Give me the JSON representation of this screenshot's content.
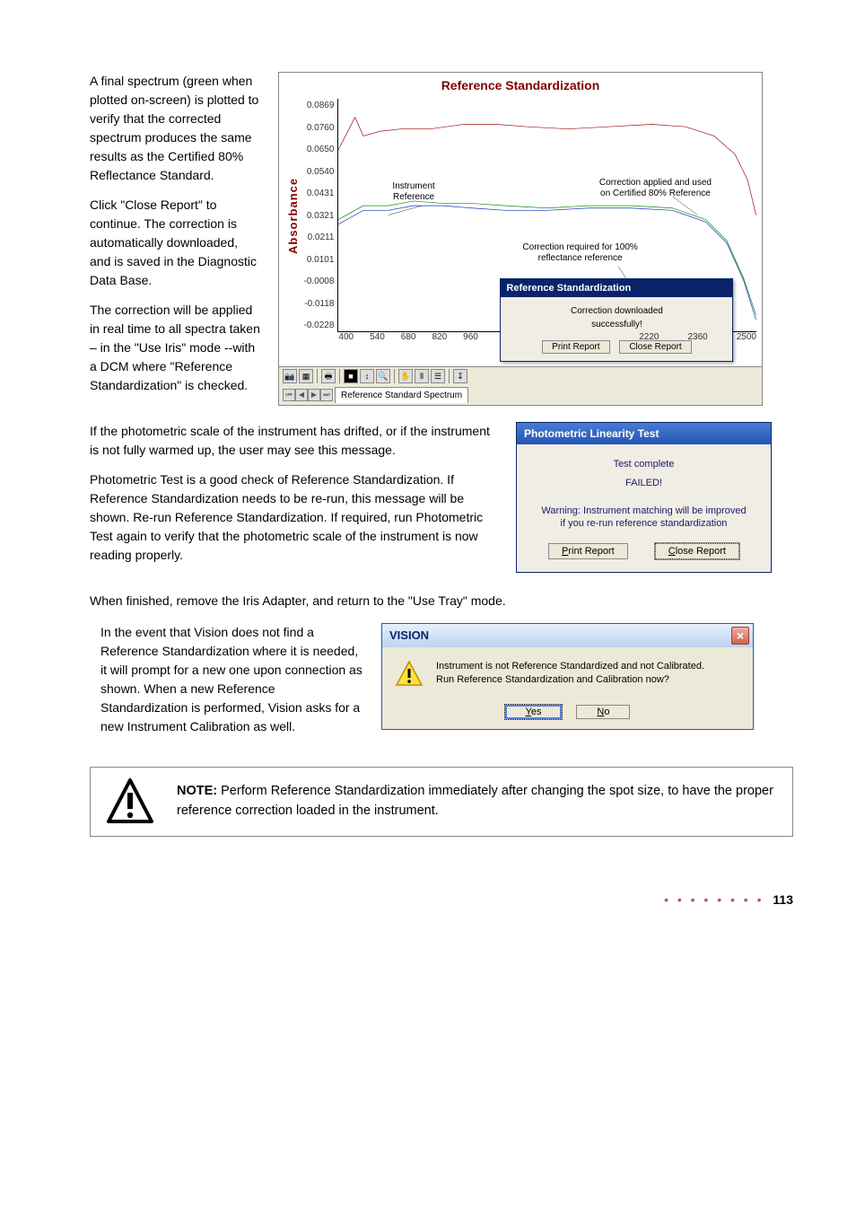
{
  "para1": "A final spectrum (green when plotted on-screen) is plotted to verify that the corrected spectrum produces the same results as the Certified 80% Reflectance Standard.",
  "para2": "Click \"Close Report\" to continue. The correction is automatically downloaded, and is saved in the Diagnostic Data Base.",
  "para3": "The correction will be applied in real time to all spectra taken – in the \"Use Iris\" mode --with a DCM where \"Reference Standardization\" is checked.",
  "para4": "If the photometric scale of the instrument has drifted, or if the instrument is not fully warmed up, the user may see this message.",
  "para5": "Photometric Test is a good check of Reference Standardization. If Reference Standardization needs to be re-run, this message will be shown. Re-run Reference Standardization. If required, run Photometric Test again to verify that the photometric scale of the instrument is now reading properly.",
  "para6": "When finished, remove the Iris Adapter, and return to the \"Use Tray\" mode.",
  "para7": "In the event that Vision does not find a Reference Standardization where it is needed, it will prompt for a new one upon connection as shown. When a new Reference Standardization is performed, Vision asks for a new Instrument Calibration as well.",
  "chart": {
    "title": "Reference Standardization",
    "ylabel": "Absorbance",
    "yticks": [
      "0.0869",
      "0.0760",
      "0.0650",
      "0.0540",
      "0.0431",
      "0.0321",
      "0.0211",
      "0.0101",
      "-0.0008",
      "-0.0118",
      "-0.0228"
    ],
    "xticks_left": [
      "400",
      "540",
      "680",
      "820",
      "960"
    ],
    "xticks_right": [
      "2220",
      "2360",
      "2500"
    ],
    "annot1a": "Instrument",
    "annot1b": "Reference",
    "annot2a": "Correction applied and used",
    "annot2b": "on Certified 80% Reference",
    "annot3a": "Correction required for 100%",
    "annot3b": "reflectance reference",
    "dlg_title": "Reference Standardization",
    "dlg_line1": "Correction downloaded",
    "dlg_line2": "successfully!",
    "dlg_print": "Print Report",
    "dlg_close": "Close Report",
    "tab": "Reference Standard Spectrum",
    "blue_color": "#1030c0",
    "maroon_color": "#a01010",
    "green_color": "#109010",
    "series_blue": [
      [
        0,
        0.46
      ],
      [
        0.06,
        0.52
      ],
      [
        0.12,
        0.52
      ],
      [
        0.18,
        0.54
      ],
      [
        0.25,
        0.54
      ],
      [
        0.32,
        0.53
      ],
      [
        0.4,
        0.52
      ],
      [
        0.5,
        0.52
      ],
      [
        0.6,
        0.53
      ],
      [
        0.7,
        0.53
      ],
      [
        0.8,
        0.52
      ],
      [
        0.88,
        0.47
      ],
      [
        0.93,
        0.38
      ],
      [
        0.97,
        0.22
      ],
      [
        1,
        0.05
      ]
    ],
    "series_red": [
      [
        0,
        0.78
      ],
      [
        0.04,
        0.92
      ],
      [
        0.06,
        0.84
      ],
      [
        0.1,
        0.86
      ],
      [
        0.15,
        0.87
      ],
      [
        0.22,
        0.87
      ],
      [
        0.3,
        0.89
      ],
      [
        0.38,
        0.89
      ],
      [
        0.45,
        0.88
      ],
      [
        0.55,
        0.87
      ],
      [
        0.65,
        0.88
      ],
      [
        0.75,
        0.89
      ],
      [
        0.83,
        0.88
      ],
      [
        0.9,
        0.84
      ],
      [
        0.95,
        0.76
      ],
      [
        0.98,
        0.65
      ],
      [
        1,
        0.5
      ]
    ],
    "series_green": [
      [
        0,
        0.48
      ],
      [
        0.06,
        0.54
      ],
      [
        0.12,
        0.54
      ],
      [
        0.18,
        0.56
      ],
      [
        0.25,
        0.55
      ],
      [
        0.32,
        0.55
      ],
      [
        0.4,
        0.54
      ],
      [
        0.5,
        0.53
      ],
      [
        0.6,
        0.54
      ],
      [
        0.7,
        0.54
      ],
      [
        0.8,
        0.53
      ],
      [
        0.88,
        0.48
      ],
      [
        0.93,
        0.39
      ],
      [
        0.97,
        0.23
      ],
      [
        1,
        0.07
      ]
    ]
  },
  "photo": {
    "title": "Photometric Linearity Test",
    "l1": "Test complete",
    "l2": "FAILED!",
    "warn1": "Warning: Instrument matching will be improved",
    "warn2": "if you re-run reference standardization",
    "print": "Print Report",
    "close": "Close Report",
    "close_key": "C",
    "print_key": "P"
  },
  "vision": {
    "title": "VISION",
    "msg1": "Instrument is not Reference Standardized and not Calibrated.",
    "msg2": "Run Reference Standardization and Calibration now?",
    "yes": "Yes",
    "no": "No",
    "yes_key": "Y",
    "no_key": "N"
  },
  "note": {
    "bold": "NOTE:",
    "text": " Perform Reference Standardization immediately after changing the spot size, to have the proper reference correction loaded in the instrument."
  },
  "page": "113"
}
